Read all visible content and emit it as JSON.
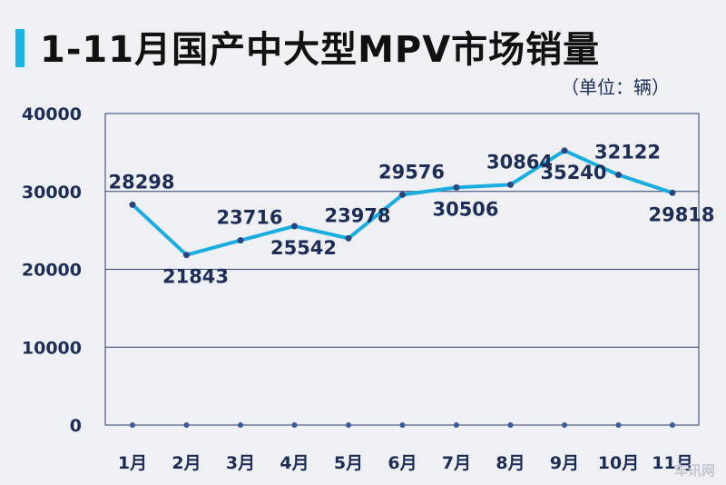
{
  "header": {
    "title": "1-11月国产中大型MPV市场销量",
    "unit": "（单位：辆）"
  },
  "colors": {
    "accent": "#19b5e6",
    "line": "#1aaee0",
    "text": "#1e2d55",
    "grid": "#2b3d6e",
    "background": "#eef0f3"
  },
  "watermark": "车讯网",
  "chart_data": {
    "type": "line",
    "title": "1-11月国产中大型MPV市场销量",
    "ylabel": "（单位：辆）",
    "xlabel": "",
    "categories": [
      "1月",
      "2月",
      "3月",
      "4月",
      "5月",
      "6月",
      "7月",
      "8月",
      "9月",
      "10月",
      "11月"
    ],
    "series": [
      {
        "name": "销量",
        "values": [
          28298,
          21843,
          23716,
          25542,
          23978,
          29576,
          30506,
          30864,
          35240,
          32122,
          29818
        ]
      }
    ],
    "ylim": [
      0,
      40000
    ],
    "yticks": [
      0,
      10000,
      20000,
      30000,
      40000
    ],
    "ytick_labels": [
      "0",
      "10000",
      "20000",
      "30000",
      "40000"
    ],
    "grid": true,
    "label_positions": [
      "above",
      "below",
      "above",
      "below",
      "above",
      "above",
      "below",
      "above",
      "below",
      "above",
      "below"
    ]
  }
}
